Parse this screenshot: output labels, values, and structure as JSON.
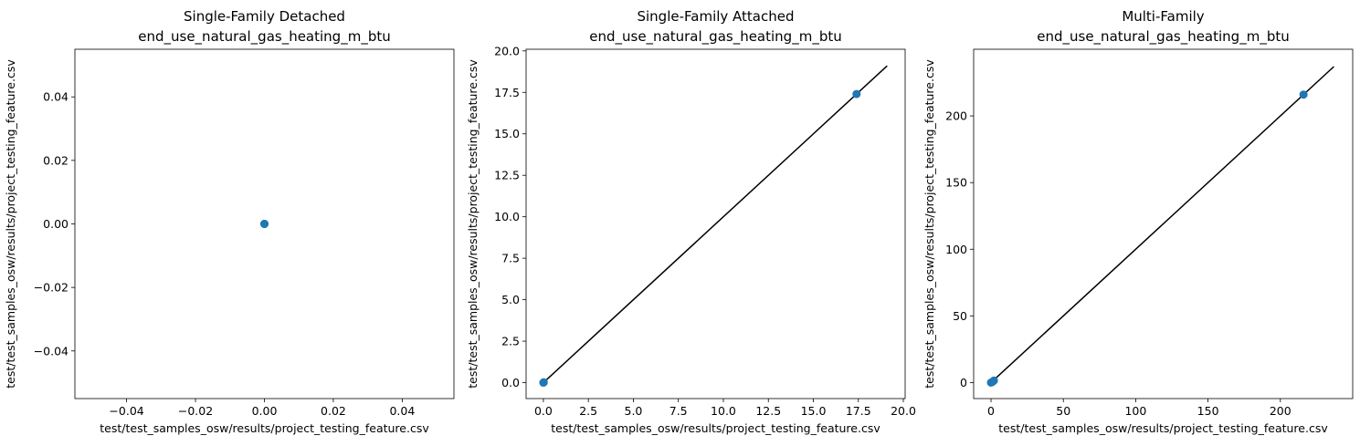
{
  "chart_data": [
    {
      "type": "scatter",
      "title": "Single-Family Detached",
      "subtitle": "end_use_natural_gas_heating_m_btu",
      "xlabel": "test/test_samples_osw/results/project_testing_feature.csv",
      "ylabel": "test/test_samples_osw/results/project_testing_feature.csv",
      "xlim": [
        -0.055,
        0.055
      ],
      "ylim": [
        -0.055,
        0.055
      ],
      "xticks": [
        -0.04,
        -0.02,
        0.0,
        0.02,
        0.04
      ],
      "xtick_labels": [
        "−0.04",
        "−0.02",
        "0.00",
        "0.02",
        "0.04"
      ],
      "yticks": [
        -0.04,
        -0.02,
        0.0,
        0.02,
        0.04
      ],
      "ytick_labels": [
        "−0.04",
        "−0.02",
        "0.00",
        "0.02",
        "0.04"
      ],
      "points": [
        {
          "x": 0,
          "y": 0
        },
        {
          "x": 0,
          "y": 0
        },
        {
          "x": 0,
          "y": 0
        }
      ],
      "identity_line": null,
      "point_color": "#1f77b4",
      "line_color": "#000000",
      "grid": false
    },
    {
      "type": "scatter",
      "title": "Single-Family Attached",
      "subtitle": "end_use_natural_gas_heating_m_btu",
      "xlabel": "test/test_samples_osw/results/project_testing_feature.csv",
      "ylabel": "test/test_samples_osw/results/project_testing_feature.csv",
      "xlim": [
        -0.96,
        20.1
      ],
      "ylim": [
        -0.96,
        20.1
      ],
      "xticks": [
        0,
        2.5,
        5,
        7.5,
        10,
        12.5,
        15,
        17.5,
        20
      ],
      "xtick_labels": [
        "0.0",
        "2.5",
        "5.0",
        "7.5",
        "10.0",
        "12.5",
        "15.0",
        "17.5",
        "20.0"
      ],
      "yticks": [
        0,
        2.5,
        5,
        7.5,
        10,
        12.5,
        15,
        17.5,
        20
      ],
      "ytick_labels": [
        "0.0",
        "2.5",
        "5.0",
        "7.5",
        "10.0",
        "12.5",
        "15.0",
        "17.5",
        "20.0"
      ],
      "points": [
        {
          "x": 0,
          "y": 0
        },
        {
          "x": 0.02,
          "y": 0.02
        },
        {
          "x": 17.4,
          "y": 17.4
        }
      ],
      "identity_line": [
        0,
        19.1
      ],
      "point_color": "#1f77b4",
      "line_color": "#000000",
      "grid": false
    },
    {
      "type": "scatter",
      "title": "Multi-Family",
      "subtitle": "end_use_natural_gas_heating_m_btu",
      "xlabel": "test/test_samples_osw/results/project_testing_feature.csv",
      "ylabel": "test/test_samples_osw/results/project_testing_feature.csv",
      "xlim": [
        -12,
        250
      ],
      "ylim": [
        -12,
        250
      ],
      "xticks": [
        0,
        50,
        100,
        150,
        200
      ],
      "xtick_labels": [
        "0",
        "50",
        "100",
        "150",
        "200"
      ],
      "yticks": [
        0,
        50,
        100,
        150,
        200
      ],
      "ytick_labels": [
        "0",
        "50",
        "100",
        "150",
        "200"
      ],
      "points": [
        {
          "x": 0,
          "y": 0
        },
        {
          "x": 1,
          "y": 0.5
        },
        {
          "x": 2,
          "y": 1.5
        },
        {
          "x": 216,
          "y": 216
        }
      ],
      "identity_line": [
        0,
        237
      ],
      "point_color": "#1f77b4",
      "line_color": "#000000",
      "grid": false
    }
  ]
}
